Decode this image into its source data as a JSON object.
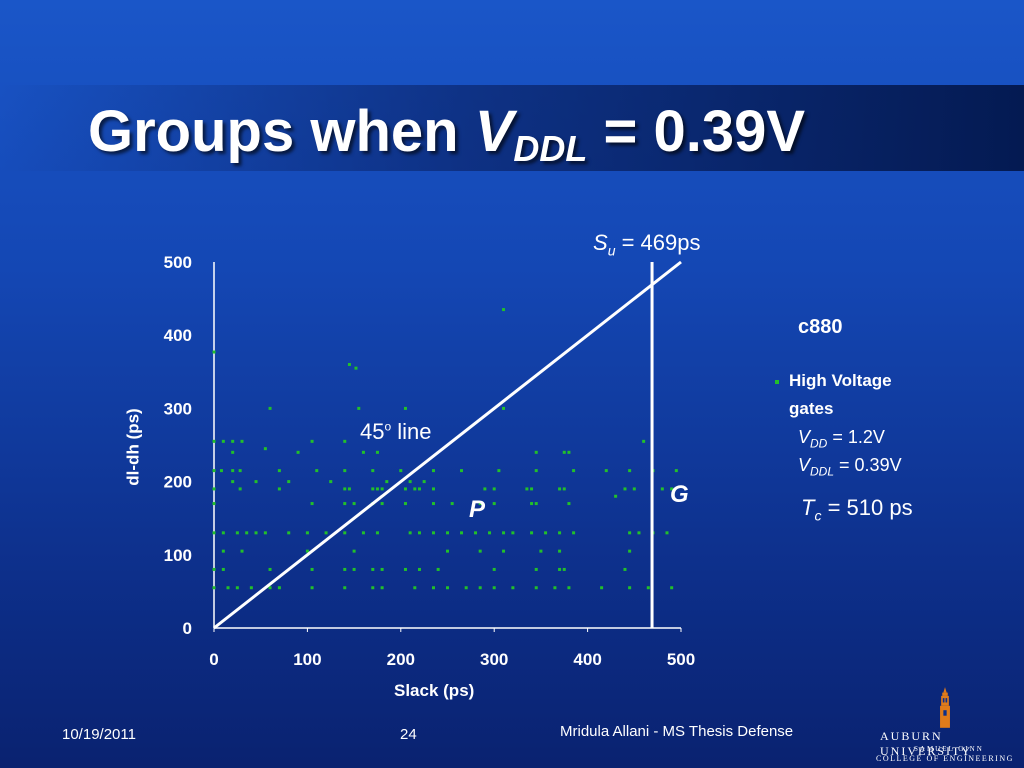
{
  "slide": {
    "title_prefix": "Groups when ",
    "title_v": "V",
    "title_sub": "DDL",
    "title_suffix": " = 0.39V",
    "footer_date": "10/19/2011",
    "footer_page": "24",
    "footer_author": "Mridula Allani - MS Thesis Defense",
    "logo_line1": "AUBURN UNIVERSITY",
    "logo_line2": "SAMUEL GINN",
    "logo_line3": "COLLEGE OF ENGINEERING"
  },
  "annotations": {
    "su_label_s": "S",
    "su_label_sub": "u",
    "su_label_rest": " = 469ps",
    "line45_label": "45",
    "line45_sup": "o",
    "line45_rest": " line",
    "group_p": "P",
    "group_g": "G",
    "circuit": "c880",
    "legend_label_1": "High Voltage",
    "legend_label_2": "gates",
    "vdd_v": "V",
    "vdd_sub": "DD",
    "vdd_rest": " = 1.2V",
    "vddl_v": "V",
    "vddl_sub": "DDL",
    "vddl_rest": " = 0.39V",
    "tc_t": "T",
    "tc_sub": "c",
    "tc_rest": " = 510 ps"
  },
  "colors": {
    "point_color": "#22c02a",
    "line_color": "#ffffff",
    "axis_color": "#ffffff"
  },
  "chart_data": {
    "type": "scatter",
    "title": "",
    "xlabel": "Slack (ps)",
    "ylabel": "dl-dh (ps)",
    "xlim": [
      0,
      500
    ],
    "ylim": [
      0,
      500
    ],
    "x_ticks": [
      "0",
      "100",
      "200",
      "300",
      "400",
      "500"
    ],
    "y_ticks": [
      "0",
      "100",
      "200",
      "300",
      "400",
      "500"
    ],
    "legend": "right",
    "grid": false,
    "vertical_line_x": 469,
    "diagonal_line": [
      [
        0,
        0
      ],
      [
        500,
        500
      ]
    ],
    "series": [
      {
        "name": "High Voltage gates",
        "points": [
          [
            310,
            435
          ],
          [
            0,
            377
          ],
          [
            145,
            360
          ],
          [
            152,
            355
          ],
          [
            60,
            300
          ],
          [
            155,
            300
          ],
          [
            205,
            300
          ],
          [
            310,
            300
          ],
          [
            0,
            255
          ],
          [
            10,
            255
          ],
          [
            20,
            255
          ],
          [
            30,
            255
          ],
          [
            105,
            255
          ],
          [
            140,
            255
          ],
          [
            460,
            255
          ],
          [
            20,
            240
          ],
          [
            55,
            245
          ],
          [
            90,
            240
          ],
          [
            160,
            240
          ],
          [
            175,
            240
          ],
          [
            345,
            240
          ],
          [
            375,
            240
          ],
          [
            380,
            240
          ],
          [
            0,
            215
          ],
          [
            8,
            215
          ],
          [
            20,
            215
          ],
          [
            28,
            215
          ],
          [
            70,
            215
          ],
          [
            110,
            215
          ],
          [
            140,
            215
          ],
          [
            170,
            215
          ],
          [
            200,
            215
          ],
          [
            235,
            215
          ],
          [
            265,
            215
          ],
          [
            305,
            215
          ],
          [
            345,
            215
          ],
          [
            385,
            215
          ],
          [
            420,
            215
          ],
          [
            445,
            215
          ],
          [
            470,
            215
          ],
          [
            495,
            215
          ],
          [
            20,
            200
          ],
          [
            45,
            200
          ],
          [
            80,
            200
          ],
          [
            125,
            200
          ],
          [
            185,
            200
          ],
          [
            210,
            200
          ],
          [
            225,
            200
          ],
          [
            0,
            190
          ],
          [
            28,
            190
          ],
          [
            70,
            190
          ],
          [
            140,
            190
          ],
          [
            145,
            190
          ],
          [
            170,
            190
          ],
          [
            175,
            190
          ],
          [
            180,
            190
          ],
          [
            205,
            190
          ],
          [
            215,
            190
          ],
          [
            220,
            190
          ],
          [
            235,
            190
          ],
          [
            290,
            190
          ],
          [
            300,
            190
          ],
          [
            335,
            190
          ],
          [
            340,
            190
          ],
          [
            370,
            190
          ],
          [
            375,
            190
          ],
          [
            440,
            190
          ],
          [
            450,
            190
          ],
          [
            480,
            190
          ],
          [
            490,
            190
          ],
          [
            0,
            170
          ],
          [
            105,
            170
          ],
          [
            140,
            170
          ],
          [
            150,
            170
          ],
          [
            170,
            170
          ],
          [
            180,
            170
          ],
          [
            205,
            170
          ],
          [
            235,
            170
          ],
          [
            255,
            170
          ],
          [
            285,
            170
          ],
          [
            300,
            170
          ],
          [
            340,
            170
          ],
          [
            345,
            170
          ],
          [
            380,
            170
          ],
          [
            430,
            180
          ],
          [
            0,
            130
          ],
          [
            10,
            130
          ],
          [
            25,
            130
          ],
          [
            35,
            130
          ],
          [
            45,
            130
          ],
          [
            55,
            130
          ],
          [
            80,
            130
          ],
          [
            100,
            130
          ],
          [
            120,
            130
          ],
          [
            140,
            130
          ],
          [
            160,
            130
          ],
          [
            175,
            130
          ],
          [
            210,
            130
          ],
          [
            220,
            130
          ],
          [
            235,
            130
          ],
          [
            250,
            130
          ],
          [
            265,
            130
          ],
          [
            280,
            130
          ],
          [
            295,
            130
          ],
          [
            310,
            130
          ],
          [
            320,
            130
          ],
          [
            340,
            130
          ],
          [
            355,
            130
          ],
          [
            370,
            130
          ],
          [
            385,
            130
          ],
          [
            445,
            130
          ],
          [
            455,
            130
          ],
          [
            470,
            130
          ],
          [
            485,
            130
          ],
          [
            10,
            105
          ],
          [
            30,
            105
          ],
          [
            100,
            105
          ],
          [
            150,
            105
          ],
          [
            250,
            105
          ],
          [
            285,
            105
          ],
          [
            310,
            105
          ],
          [
            350,
            105
          ],
          [
            370,
            105
          ],
          [
            445,
            105
          ],
          [
            0,
            80
          ],
          [
            10,
            80
          ],
          [
            60,
            80
          ],
          [
            105,
            80
          ],
          [
            140,
            80
          ],
          [
            150,
            80
          ],
          [
            170,
            80
          ],
          [
            180,
            80
          ],
          [
            205,
            80
          ],
          [
            220,
            80
          ],
          [
            240,
            80
          ],
          [
            300,
            80
          ],
          [
            345,
            80
          ],
          [
            370,
            80
          ],
          [
            375,
            80
          ],
          [
            440,
            80
          ],
          [
            0,
            55
          ],
          [
            15,
            55
          ],
          [
            25,
            55
          ],
          [
            40,
            55
          ],
          [
            60,
            55
          ],
          [
            70,
            55
          ],
          [
            105,
            55
          ],
          [
            140,
            55
          ],
          [
            170,
            55
          ],
          [
            180,
            55
          ],
          [
            215,
            55
          ],
          [
            235,
            55
          ],
          [
            250,
            55
          ],
          [
            270,
            55
          ],
          [
            285,
            55
          ],
          [
            300,
            55
          ],
          [
            320,
            55
          ],
          [
            345,
            55
          ],
          [
            365,
            55
          ],
          [
            380,
            55
          ],
          [
            415,
            55
          ],
          [
            445,
            55
          ],
          [
            465,
            55
          ],
          [
            490,
            55
          ]
        ]
      }
    ]
  }
}
